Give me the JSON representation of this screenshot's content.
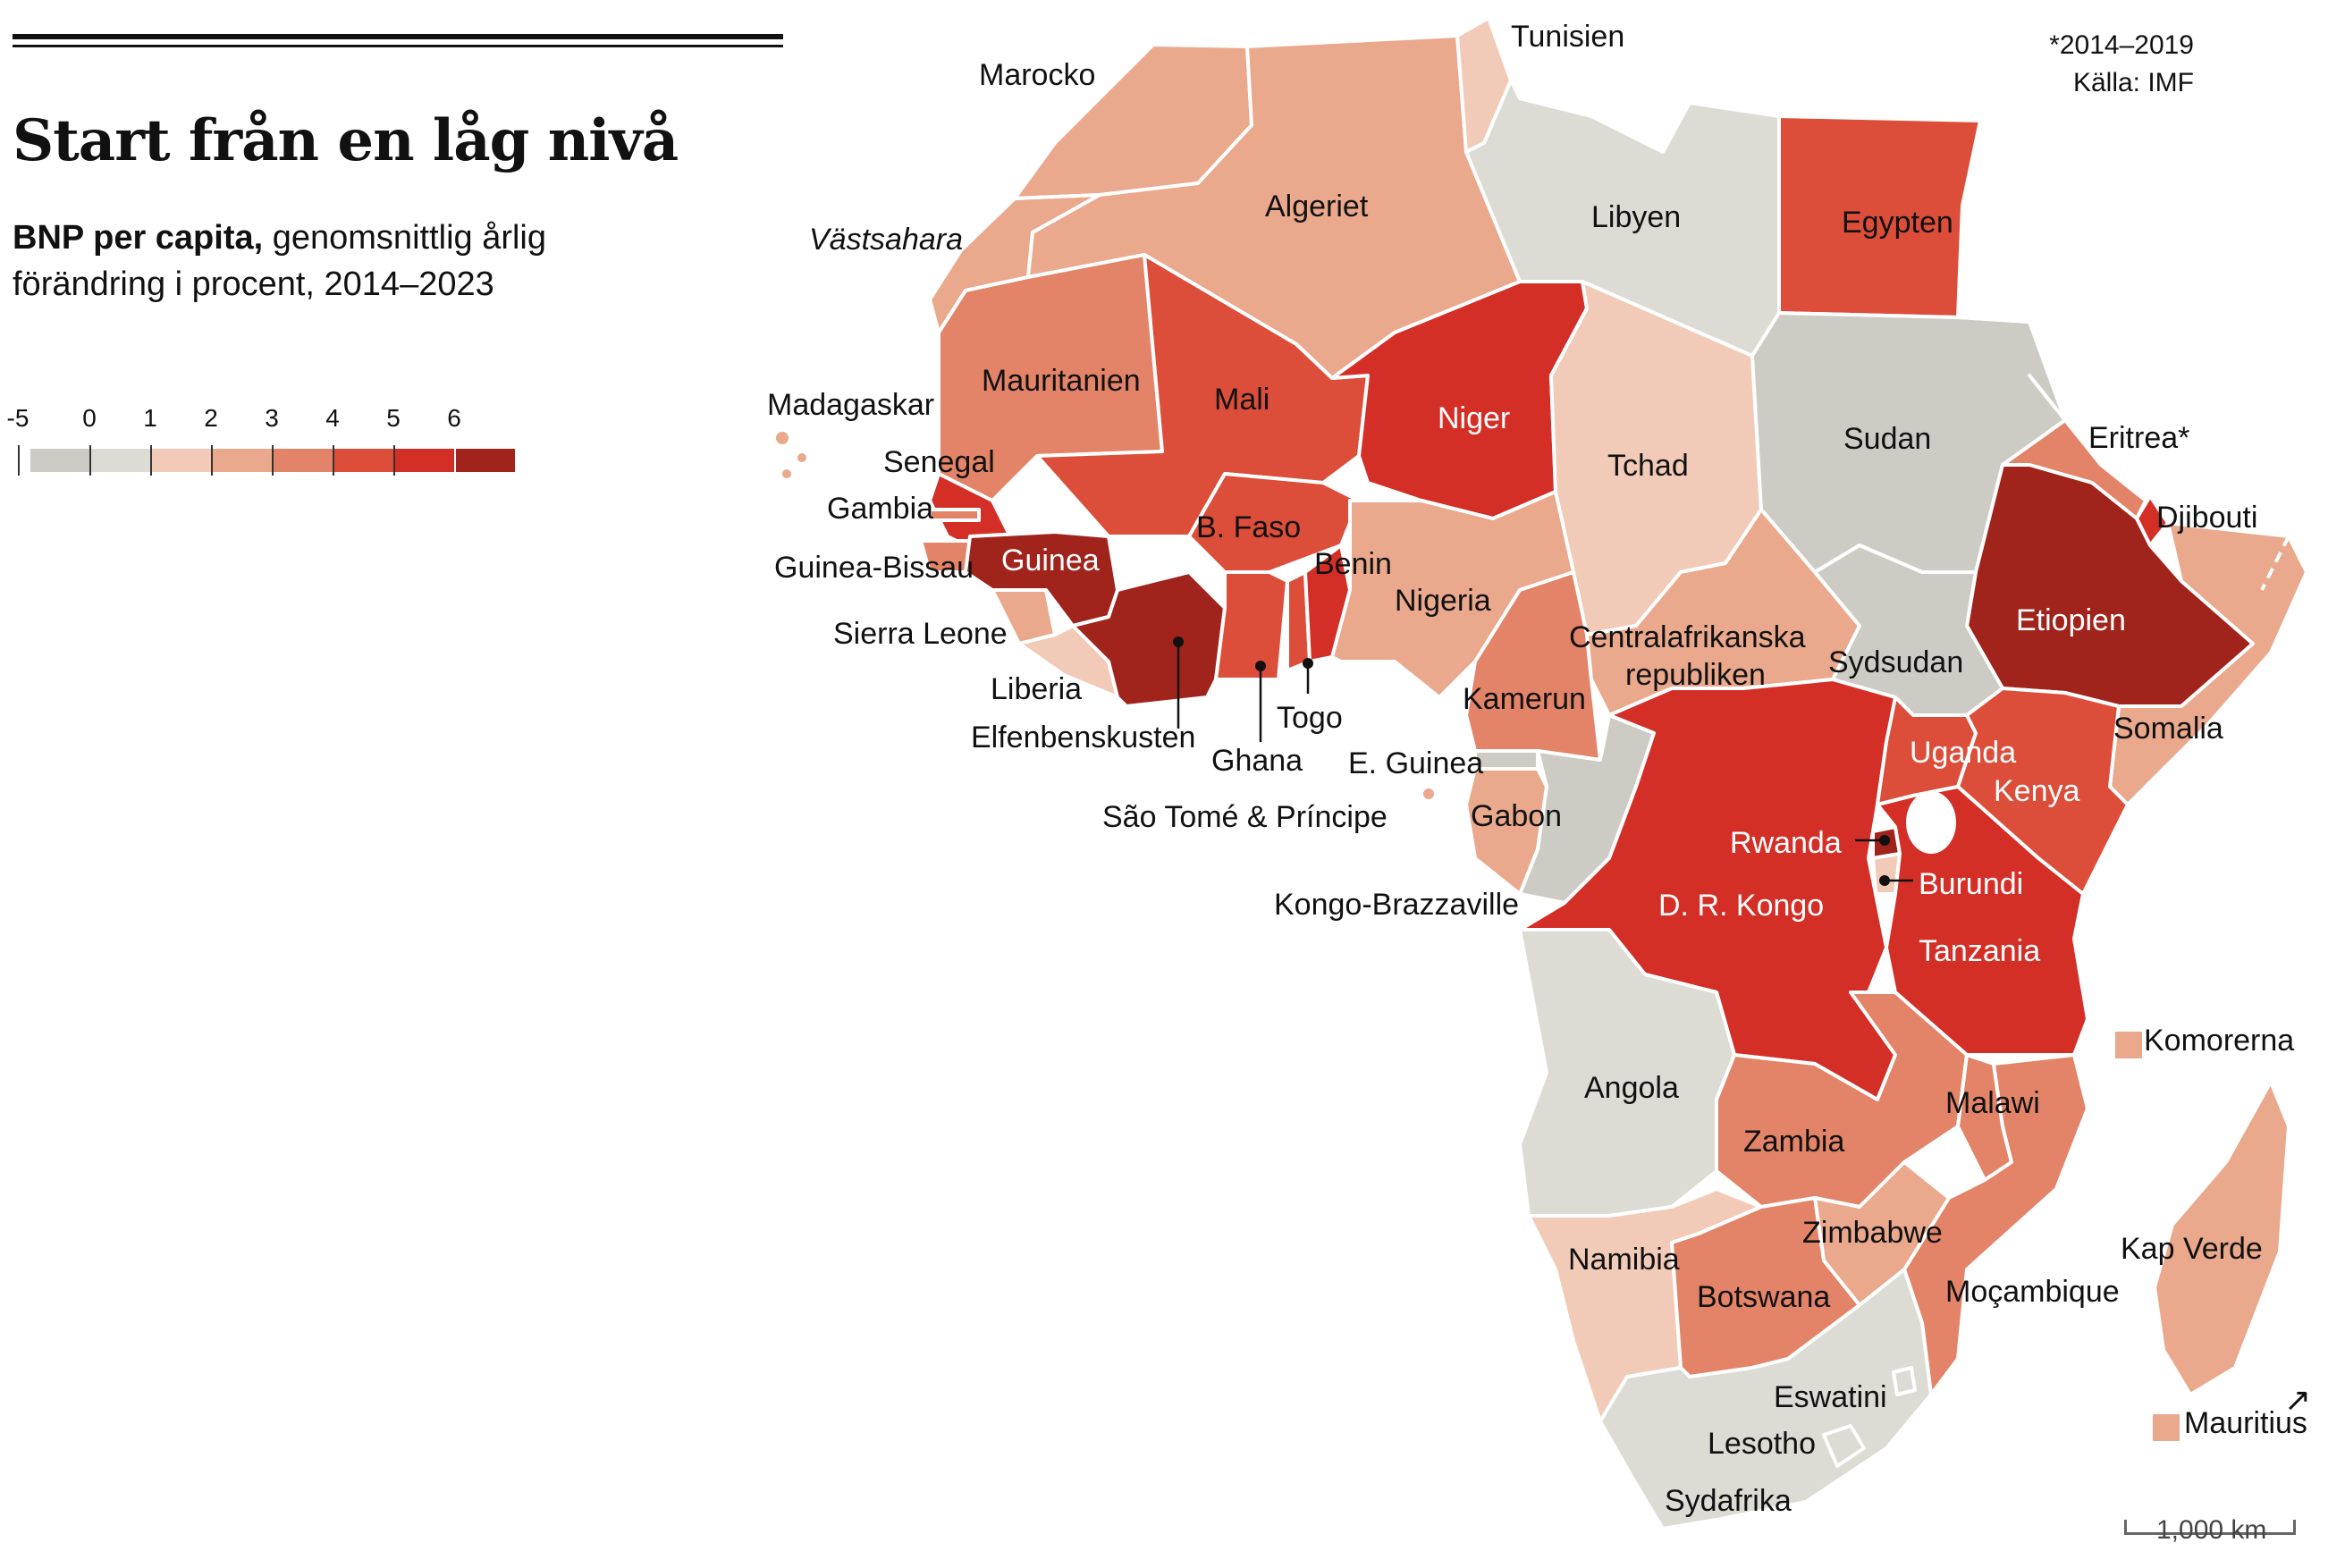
{
  "title": "Start från en låg nivå",
  "subtitle_bold": "BNP per capita,",
  "subtitle_rest": " genomsnittlig årlig förändring i procent, 2014–2023",
  "notes": {
    "footnote": "*2014–2019",
    "source": "Källa: IMF"
  },
  "legend": {
    "ticks": [
      "-5",
      "0",
      "1",
      "2",
      "3",
      "4",
      "5",
      "6"
    ],
    "bins": [
      {
        "id": "neg5",
        "color": "#cdccc4"
      },
      {
        "id": "0",
        "color": "#dcdbd4"
      },
      {
        "id": "1",
        "color": "#f2cbb8"
      },
      {
        "id": "2",
        "color": "#eaa88c"
      },
      {
        "id": "3",
        "color": "#e38468"
      },
      {
        "id": "4",
        "color": "#dc4e39"
      },
      {
        "id": "5",
        "color": "#d42f27"
      },
      {
        "id": "6",
        "color": "#a0231c"
      }
    ]
  },
  "scale_label": "1,000 km",
  "countries": [
    {
      "id": "morocco",
      "name": "Marocko",
      "bin": "2"
    },
    {
      "id": "tunisia",
      "name": "Tunisien",
      "bin": "1"
    },
    {
      "id": "algeria",
      "name": "Algeriet",
      "bin": "2"
    },
    {
      "id": "libya",
      "name": "Libyen",
      "bin": "0"
    },
    {
      "id": "egypt",
      "name": "Egypten",
      "bin": "4"
    },
    {
      "id": "western-sahara",
      "name": "Västsahara",
      "bin": "2"
    },
    {
      "id": "mauritania",
      "name": "Mauritanien",
      "bin": "3"
    },
    {
      "id": "mali",
      "name": "Mali",
      "bin": "4"
    },
    {
      "id": "niger",
      "name": "Niger",
      "bin": "5"
    },
    {
      "id": "chad",
      "name": "Tchad",
      "bin": "1"
    },
    {
      "id": "sudan",
      "name": "Sudan",
      "bin": "neg5"
    },
    {
      "id": "eritrea",
      "name": "Eritrea*",
      "bin": "3"
    },
    {
      "id": "djibouti",
      "name": "Djibouti",
      "bin": "5"
    },
    {
      "id": "ethiopia",
      "name": "Etiopien",
      "bin": "6"
    },
    {
      "id": "somalia",
      "name": "Somalia",
      "bin": "2"
    },
    {
      "id": "senegal",
      "name": "Senegal",
      "bin": "5"
    },
    {
      "id": "gambia",
      "name": "Gambia",
      "bin": "3"
    },
    {
      "id": "guinea-bissau",
      "name": "Guinea-Bissau",
      "bin": "3"
    },
    {
      "id": "guinea",
      "name": "Guinea",
      "bin": "6"
    },
    {
      "id": "sierra-leone",
      "name": "Sierra Leone",
      "bin": "2"
    },
    {
      "id": "liberia",
      "name": "Liberia",
      "bin": "1"
    },
    {
      "id": "ivory-coast",
      "name": "Elfenbenskusten",
      "bin": "6"
    },
    {
      "id": "burkina-faso",
      "name": "B. Faso",
      "bin": "4"
    },
    {
      "id": "ghana",
      "name": "Ghana",
      "bin": "4"
    },
    {
      "id": "togo",
      "name": "Togo",
      "bin": "4"
    },
    {
      "id": "benin",
      "name": "Benin",
      "bin": "5"
    },
    {
      "id": "nigeria",
      "name": "Nigeria",
      "bin": "2"
    },
    {
      "id": "cameroon",
      "name": "Kamerun",
      "bin": "3"
    },
    {
      "id": "car",
      "name": "Centralafrikanska republiken",
      "bin": "2"
    },
    {
      "id": "south-sudan",
      "name": "Sydsudan",
      "bin": "neg5"
    },
    {
      "id": "eq-guinea",
      "name": "E. Guinea",
      "bin": "neg5"
    },
    {
      "id": "sao-tome",
      "name": "São Tomé & Príncipe",
      "bin": "2"
    },
    {
      "id": "gabon",
      "name": "Gabon",
      "bin": "2"
    },
    {
      "id": "congo-brazzaville",
      "name": "Kongo-Brazzaville",
      "bin": "neg5"
    },
    {
      "id": "drc",
      "name": "D. R. Kongo",
      "bin": "5"
    },
    {
      "id": "uganda",
      "name": "Uganda",
      "bin": "4"
    },
    {
      "id": "kenya",
      "name": "Kenya",
      "bin": "4"
    },
    {
      "id": "rwanda",
      "name": "Rwanda",
      "bin": "6"
    },
    {
      "id": "burundi",
      "name": "Burundi",
      "bin": "1"
    },
    {
      "id": "tanzania",
      "name": "Tanzania",
      "bin": "5"
    },
    {
      "id": "angola",
      "name": "Angola",
      "bin": "0"
    },
    {
      "id": "zambia",
      "name": "Zambia",
      "bin": "3"
    },
    {
      "id": "malawi",
      "name": "Malawi",
      "bin": "3"
    },
    {
      "id": "mozambique",
      "name": "Moçambique",
      "bin": "3"
    },
    {
      "id": "zimbabwe",
      "name": "Zimbabwe",
      "bin": "2"
    },
    {
      "id": "namibia",
      "name": "Namibia",
      "bin": "1"
    },
    {
      "id": "botswana",
      "name": "Botswana",
      "bin": "3"
    },
    {
      "id": "south-africa",
      "name": "Sydafrika",
      "bin": "0"
    },
    {
      "id": "lesotho",
      "name": "Lesotho",
      "bin": "0"
    },
    {
      "id": "eswatini",
      "name": "Eswatini",
      "bin": "0"
    },
    {
      "id": "madagascar",
      "name": "Madagaskar",
      "bin": "2"
    },
    {
      "id": "cape-verde",
      "name": "Kap Verde",
      "bin": "2"
    },
    {
      "id": "comoros",
      "name": "Komorerna",
      "bin": "2"
    },
    {
      "id": "mauritius",
      "name": "Mauritius",
      "bin": "2"
    }
  ]
}
